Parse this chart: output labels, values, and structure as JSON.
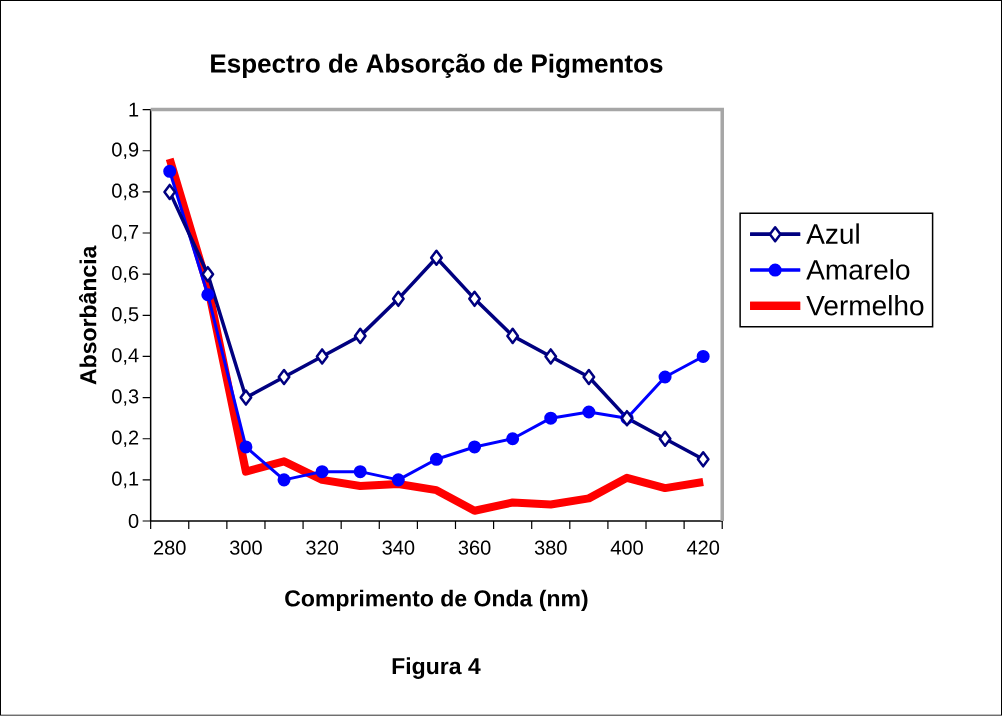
{
  "chart_data": {
    "type": "line",
    "title": "Espectro de Absorção de Pigmentos",
    "xlabel": "Comprimento de Onda (nm)",
    "ylabel": "Absorbância",
    "annotations": [
      "Figura 4"
    ],
    "categories": [
      "280",
      null,
      "300",
      null,
      "320",
      null,
      "340",
      null,
      "360",
      null,
      "380",
      null,
      "400",
      null,
      "420"
    ],
    "series": [
      {
        "name": "Azul",
        "color": "#000080",
        "marker": "diamond",
        "values": [
          0.8,
          0.6,
          0.3,
          0.35,
          0.4,
          0.45,
          0.54,
          0.64,
          0.54,
          0.45,
          0.4,
          0.35,
          0.25,
          0.2,
          0.15
        ]
      },
      {
        "name": "Amarelo",
        "color": "#0000ff",
        "marker": "circle",
        "values": [
          0.85,
          0.55,
          0.18,
          0.1,
          0.12,
          0.12,
          0.1,
          0.15,
          0.18,
          0.2,
          0.25,
          0.265,
          0.25,
          0.35,
          0.4
        ]
      },
      {
        "name": "Vermelho",
        "color": "#ff0000",
        "marker": "none",
        "values": [
          0.88,
          0.57,
          0.12,
          0.145,
          0.1,
          0.085,
          0.09,
          0.075,
          0.025,
          0.045,
          0.04,
          0.055,
          0.105,
          0.08,
          0.095
        ]
      }
    ],
    "ylim": [
      0,
      1
    ],
    "yticks": [
      0,
      {
        "value": 0.1,
        "label": "0,1"
      },
      {
        "value": 0.2,
        "label": "0,2"
      },
      {
        "value": 0.3,
        "label": "0,3"
      },
      {
        "value": 0.4,
        "label": "0,4"
      },
      {
        "value": 0.5,
        "label": "0,5"
      },
      {
        "value": 0.6,
        "label": "0,6"
      },
      {
        "value": 0.7,
        "label": "0,7"
      },
      {
        "value": 0.8,
        "label": "0,8"
      },
      {
        "value": 0.9,
        "label": "0,9"
      },
      1
    ],
    "grid": false,
    "legend": "right"
  }
}
